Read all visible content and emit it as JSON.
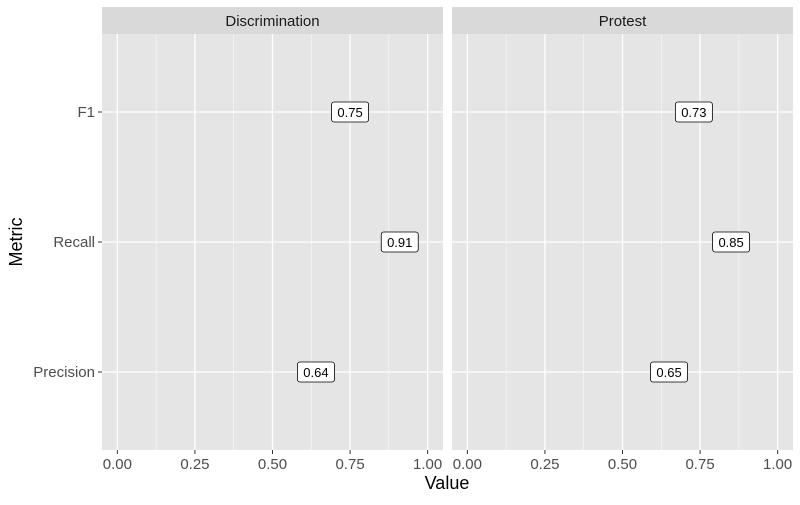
{
  "chart_data": {
    "type": "label-panel",
    "xlabel": "Value",
    "ylabel": "Metric",
    "xlim": [
      0.0,
      1.0
    ],
    "x_ticks": [
      "0.00",
      "0.25",
      "0.50",
      "0.75",
      "1.00"
    ],
    "metrics": [
      "F1",
      "Recall",
      "Precision"
    ],
    "panels": [
      {
        "name": "Discrimination",
        "points": [
          {
            "metric": "F1",
            "value": 0.75,
            "label": "0.75"
          },
          {
            "metric": "Recall",
            "value": 0.91,
            "label": "0.91"
          },
          {
            "metric": "Precision",
            "value": 0.64,
            "label": "0.64"
          }
        ]
      },
      {
        "name": "Protest",
        "points": [
          {
            "metric": "F1",
            "value": 0.73,
            "label": "0.73"
          },
          {
            "metric": "Recall",
            "value": 0.85,
            "label": "0.85"
          },
          {
            "metric": "Precision",
            "value": 0.65,
            "label": "0.65"
          }
        ]
      }
    ],
    "grid": true,
    "colors": {
      "panel_bg": "#e5e5e5",
      "strip_bg": "#d9d9d9",
      "grid_major": "#ffffff",
      "label_fill": "#ffffff",
      "label_border": "#000000",
      "axis_text": "#4d4d4d",
      "title_text": "#000000"
    }
  }
}
